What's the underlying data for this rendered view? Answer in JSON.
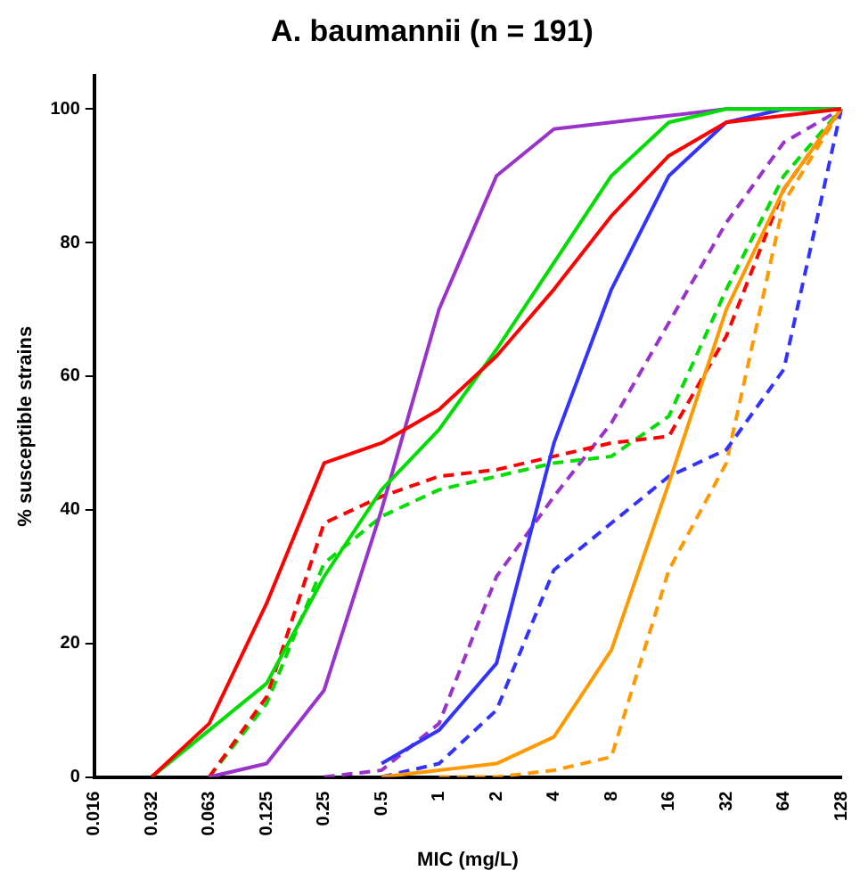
{
  "chart_data": {
    "type": "line",
    "title": "A. baumannii (n = 191)",
    "xlabel": "MIC (mg/L)",
    "ylabel": "% susceptible strains",
    "categories": [
      "0.016",
      "0.032",
      "0.063",
      "0.125",
      "0.25",
      "0.5",
      "1",
      "2",
      "4",
      "8",
      "16",
      "32",
      "64",
      "128"
    ],
    "ylim": [
      0,
      105
    ],
    "yticks": [
      0,
      20,
      40,
      60,
      80,
      100
    ],
    "grid": false,
    "legend": false,
    "marker": "none",
    "series": [
      {
        "color": "#ff0000",
        "line_style": "solid",
        "values": [
          null,
          0,
          8,
          26,
          47,
          50,
          55,
          63,
          73,
          84,
          93,
          98,
          99,
          100
        ]
      },
      {
        "color": "#00dd00",
        "line_style": "solid",
        "values": [
          null,
          0,
          7,
          14,
          30,
          43,
          52,
          64,
          77,
          90,
          98,
          100,
          100,
          100
        ]
      },
      {
        "color": "#9933cc",
        "line_style": "solid",
        "values": [
          null,
          null,
          0,
          2,
          13,
          40,
          70,
          90,
          97,
          98,
          99,
          100,
          100,
          100
        ]
      },
      {
        "color": "#3333ff",
        "line_style": "solid",
        "values": [
          null,
          null,
          null,
          null,
          null,
          2,
          7,
          17,
          50,
          73,
          90,
          98,
          100,
          100
        ]
      },
      {
        "color": "#ff9900",
        "line_style": "solid",
        "values": [
          null,
          null,
          null,
          null,
          null,
          0,
          1,
          2,
          6,
          19,
          44,
          70,
          88,
          100
        ]
      },
      {
        "color": "#ff0000",
        "line_style": "dashed",
        "values": [
          null,
          null,
          0,
          12,
          38,
          42,
          45,
          46,
          48,
          50,
          51,
          66,
          88,
          100
        ]
      },
      {
        "color": "#00dd00",
        "line_style": "dashed",
        "values": [
          null,
          null,
          0,
          11,
          32,
          39,
          43,
          45,
          47,
          48,
          54,
          73,
          90,
          100
        ]
      },
      {
        "color": "#9933cc",
        "line_style": "dashed",
        "values": [
          null,
          null,
          null,
          null,
          0,
          1,
          8,
          30,
          42,
          53,
          68,
          83,
          95,
          100
        ]
      },
      {
        "color": "#3333ff",
        "line_style": "dashed",
        "values": [
          null,
          null,
          null,
          null,
          null,
          0,
          2,
          10,
          31,
          38,
          45,
          49,
          61,
          100
        ]
      },
      {
        "color": "#ff9900",
        "line_style": "dashed",
        "values": [
          null,
          null,
          null,
          null,
          null,
          null,
          0,
          0,
          1,
          3,
          31,
          47,
          86,
          100
        ]
      }
    ]
  }
}
